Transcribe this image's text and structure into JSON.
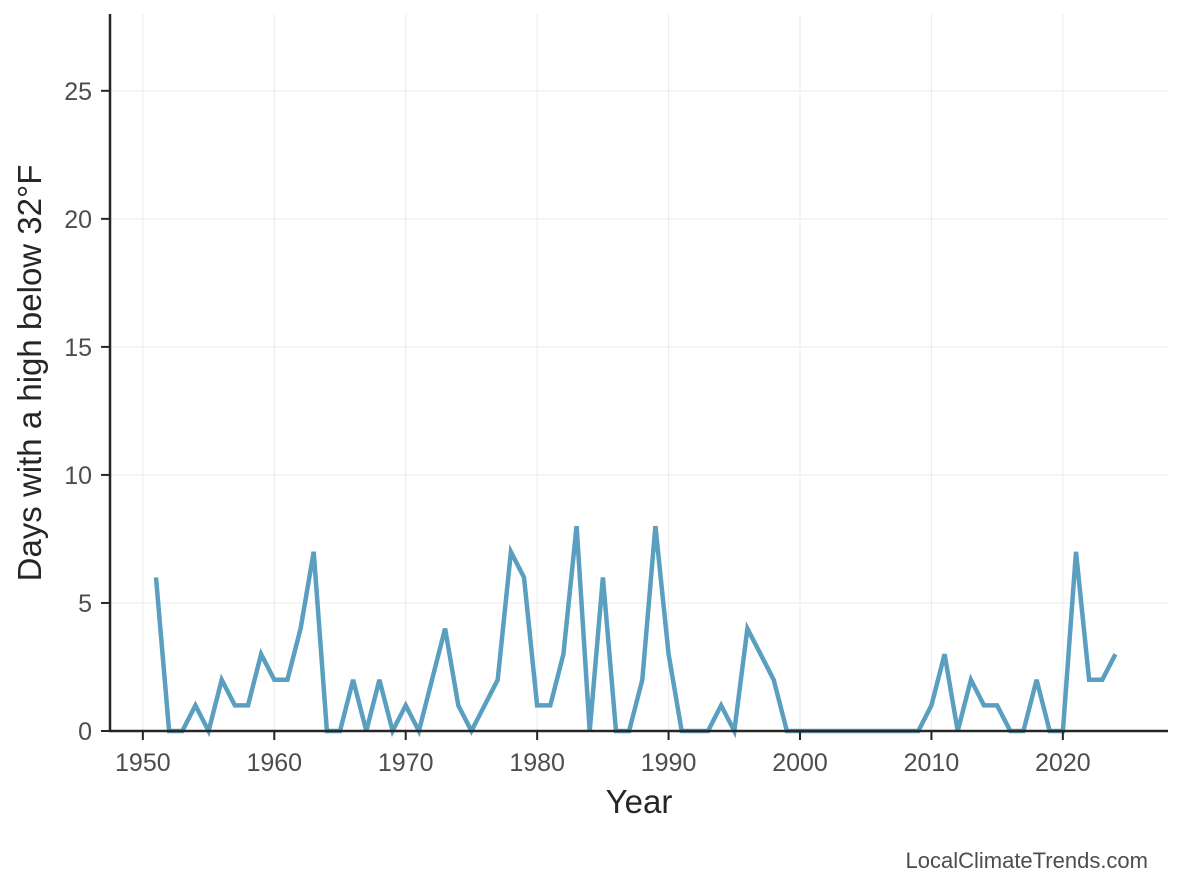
{
  "chart_data": {
    "type": "line",
    "title": "",
    "xlabel": "Year",
    "ylabel": "Days with a high below 32°F",
    "xlim": [
      1947.5,
      2028
    ],
    "ylim": [
      0,
      28
    ],
    "x_ticks": [
      1950,
      1960,
      1970,
      1980,
      1990,
      2000,
      2010,
      2020
    ],
    "y_ticks": [
      0,
      5,
      10,
      15,
      20,
      25
    ],
    "grid": true,
    "line_color": "#5a9fbf",
    "x": [
      1951,
      1952,
      1953,
      1954,
      1955,
      1956,
      1957,
      1958,
      1959,
      1960,
      1961,
      1962,
      1963,
      1964,
      1965,
      1966,
      1967,
      1968,
      1969,
      1970,
      1971,
      1972,
      1973,
      1974,
      1975,
      1976,
      1977,
      1978,
      1979,
      1980,
      1981,
      1982,
      1983,
      1984,
      1985,
      1986,
      1987,
      1988,
      1989,
      1990,
      1991,
      1992,
      1993,
      1994,
      1995,
      1996,
      1997,
      1998,
      1999,
      2000,
      2001,
      2002,
      2003,
      2004,
      2005,
      2006,
      2007,
      2008,
      2009,
      2010,
      2011,
      2012,
      2013,
      2014,
      2015,
      2016,
      2017,
      2018,
      2019,
      2020,
      2021,
      2022,
      2023,
      2024
    ],
    "y": [
      6,
      0,
      0,
      1,
      0,
      2,
      1,
      1,
      3,
      2,
      2,
      4,
      7,
      0,
      0,
      2,
      0,
      2,
      0,
      1,
      0,
      2,
      4,
      1,
      0,
      1,
      2,
      7,
      6,
      1,
      1,
      3,
      8,
      0,
      6,
      0,
      0,
      2,
      8,
      3,
      0,
      0,
      0,
      1,
      0,
      4,
      3,
      2,
      0,
      0,
      0,
      0,
      0,
      0,
      0,
      0,
      0,
      0,
      0,
      1,
      3,
      0,
      2,
      1,
      1,
      0,
      0,
      2,
      0,
      0,
      7,
      2,
      2,
      3
    ]
  },
  "credit": "LocalClimateTrends.com"
}
